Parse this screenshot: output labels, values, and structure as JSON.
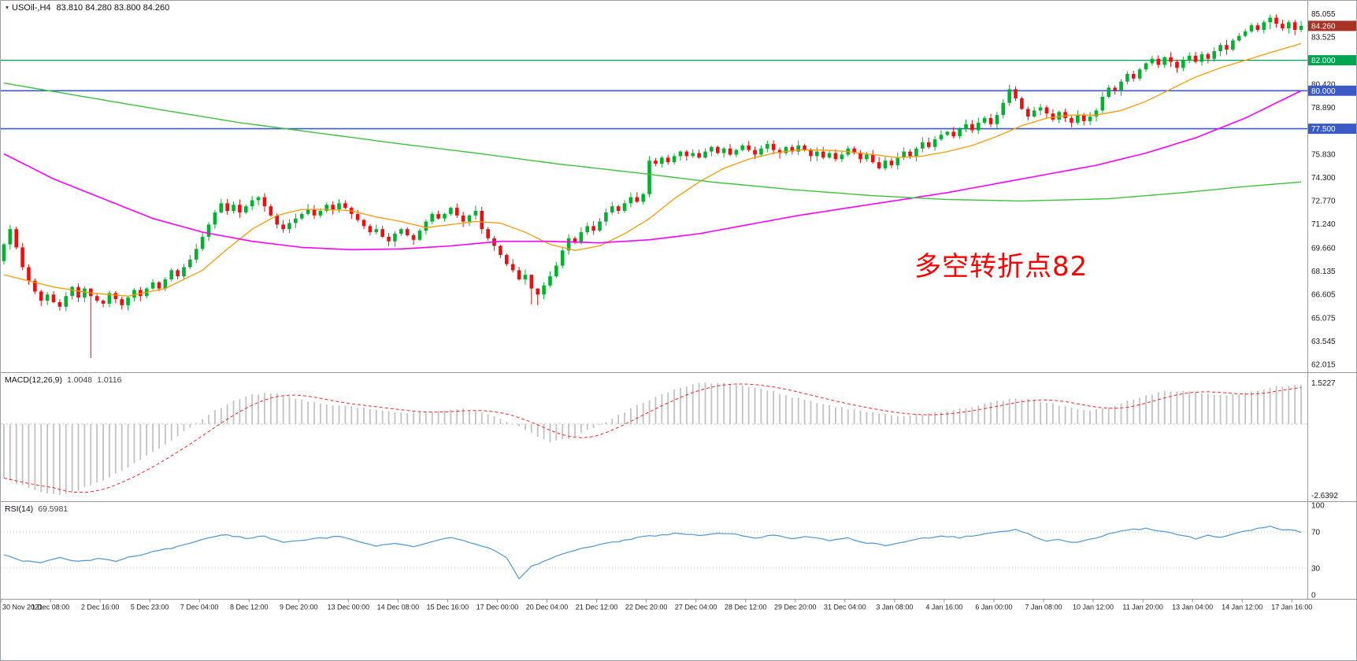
{
  "main_chart": {
    "title_symbol": "USOil-,H4",
    "title_quote": "83.810 84.280 83.800 84.260",
    "annotation": {
      "text": "多空转折点82",
      "color": "#ff0000"
    }
  },
  "indicators": {
    "macd": {
      "name": "MACD(12,26,9)",
      "macd_value": "1.0048",
      "signal_value": "1.0116",
      "scale_max": "1.5227",
      "scale_min": "-2.6392"
    },
    "rsi": {
      "name": "RSI(14)",
      "value": "69.5981",
      "levels": [
        100,
        70,
        30,
        0
      ]
    }
  },
  "y_axis": {
    "ticks": [
      "85.055",
      "83.525",
      "80.420",
      "78.890",
      "75.830",
      "74.300",
      "72.770",
      "71.240",
      "69.660",
      "68.135",
      "66.605",
      "65.075",
      "63.545",
      "62.015"
    ],
    "badges": [
      {
        "label": "84.260",
        "price": 84.26,
        "color": "#a93226"
      },
      {
        "label": "82.000",
        "price": 82.0,
        "color": "#00a550"
      },
      {
        "label": "80.000",
        "price": 80.0,
        "color": "#3a5bc7"
      },
      {
        "label": "77.500",
        "price": 77.5,
        "color": "#3a5bc7"
      }
    ]
  },
  "x_axis": {
    "labels": [
      "30 Nov 2021",
      "1 Dec 08:00",
      "2 Dec 16:00",
      "5 Dec 23:00",
      "7 Dec 04:00",
      "8 Dec 12:00",
      "9 Dec 20:00",
      "13 Dec 00:00",
      "14 Dec 08:00",
      "15 Dec 16:00",
      "17 Dec 00:00",
      "20 Dec 04:00",
      "21 Dec 12:00",
      "22 Dec 20:00",
      "27 Dec 04:00",
      "28 Dec 12:00",
      "29 Dec 20:00",
      "31 Dec 04:00",
      "3 Jan 08:00",
      "4 Jan 16:00",
      "6 Jan 00:00",
      "7 Jan 08:00",
      "10 Jan 12:00",
      "11 Jan 20:00",
      "13 Jan 04:00",
      "14 Jan 12:00",
      "17 Jan 16:00"
    ]
  },
  "chart_data": {
    "type": "candlestick",
    "symbol": "USOil",
    "timeframe": "H4",
    "price_range": [
      61.6,
      85.6
    ],
    "colors": {
      "up": "#00b22d",
      "down": "#ea1010"
    },
    "candles": {
      "first_open": 68.8,
      "closes": [
        69.9,
        70.9,
        69.7,
        68.4,
        67.5,
        66.8,
        66.2,
        66.6,
        66.1,
        65.8,
        66.5,
        67.1,
        66.4,
        67.0,
        66.5,
        66.2,
        66.0,
        66.7,
        66.3,
        65.9,
        66.4,
        66.9,
        66.5,
        67.0,
        67.4,
        67.0,
        67.6,
        68.2,
        67.8,
        68.4,
        68.9,
        69.6,
        70.4,
        71.2,
        72.0,
        72.6,
        72.1,
        72.5,
        72.0,
        72.4,
        72.8,
        73.0,
        72.4,
        71.8,
        71.2,
        70.9,
        71.3,
        71.6,
        71.9,
        72.2,
        71.8,
        72.1,
        72.5,
        72.2,
        72.6,
        72.3,
        71.9,
        71.5,
        71.1,
        70.7,
        70.9,
        70.4,
        70.1,
        70.6,
        70.9,
        70.5,
        70.2,
        70.8,
        71.4,
        71.9,
        71.6,
        71.9,
        72.3,
        71.8,
        71.4,
        71.8,
        72.1,
        70.9,
        70.3,
        69.8,
        69.2,
        68.6,
        68.2,
        67.6,
        67.9,
        67.0,
        66.6,
        67.2,
        67.8,
        68.5,
        69.5,
        70.3,
        70.0,
        70.7,
        71.1,
        70.8,
        71.4,
        72.0,
        72.4,
        72.1,
        72.6,
        73.0,
        72.7,
        73.2,
        75.4,
        75.2,
        75.6,
        75.3,
        75.7,
        76.0,
        75.7,
        75.9,
        75.6,
        76.0,
        76.3,
        75.9,
        76.2,
        75.8,
        76.1,
        76.4,
        76.1,
        75.8,
        76.2,
        76.5,
        76.1,
        75.9,
        76.3,
        76.0,
        76.4,
        76.1,
        75.7,
        76.0,
        75.6,
        75.9,
        75.5,
        75.8,
        76.2,
        75.9,
        75.5,
        75.8,
        75.3,
        74.9,
        75.4,
        75.1,
        75.6,
        76.0,
        75.7,
        76.2,
        76.6,
        76.3,
        76.8,
        77.1,
        77.3,
        77.0,
        77.5,
        77.8,
        77.4,
        77.9,
        78.2,
        77.8,
        78.4,
        79.2,
        80.1,
        79.5,
        78.8,
        78.3,
        78.7,
        78.9,
        78.5,
        78.1,
        78.6,
        78.2,
        77.9,
        78.4,
        78.0,
        78.3,
        78.7,
        79.6,
        80.2,
        80.0,
        80.6,
        81.1,
        80.8,
        81.4,
        81.8,
        82.1,
        81.7,
        82.2,
        81.9,
        81.5,
        82.0,
        82.3,
        81.9,
        82.4,
        82.1,
        82.6,
        83.0,
        82.7,
        83.3,
        83.6,
        83.9,
        84.3,
        84.0,
        84.5,
        84.8,
        84.4,
        84.1,
        84.5,
        84.0,
        84.26
      ],
      "wick_overrides": {
        "9": [
          66.3,
          65.55
        ],
        "14": [
          66.9,
          62.43
        ],
        "85": [
          67.4,
          65.95
        ],
        "86": [
          67.0,
          65.9
        ],
        "104": [
          75.7,
          73.0
        ],
        "162": [
          80.4,
          79.0
        ],
        "204": [
          85.0,
          84.05
        ]
      }
    },
    "horizontal_lines": [
      {
        "price": 82.0,
        "color": "#00a550",
        "width": 1.2
      },
      {
        "price": 80.0,
        "color": "#3a5bc7",
        "width": 1.6
      },
      {
        "price": 77.5,
        "color": "#3a5bc7",
        "width": 1.6
      }
    ],
    "moving_averages": [
      {
        "name": "MA fast",
        "color": "#ff9900",
        "width": 1.3,
        "points": [
          [
            0,
            67.9
          ],
          [
            8,
            67.1
          ],
          [
            14,
            66.7
          ],
          [
            20,
            66.5
          ],
          [
            26,
            67.0
          ],
          [
            32,
            68.2
          ],
          [
            36,
            69.6
          ],
          [
            40,
            70.9
          ],
          [
            44,
            71.8
          ],
          [
            48,
            72.2
          ],
          [
            52,
            72.2
          ],
          [
            56,
            72.1
          ],
          [
            60,
            71.7
          ],
          [
            64,
            71.4
          ],
          [
            68,
            71.0
          ],
          [
            72,
            71.2
          ],
          [
            76,
            71.4
          ],
          [
            80,
            71.3
          ],
          [
            84,
            70.7
          ],
          [
            88,
            69.9
          ],
          [
            92,
            69.5
          ],
          [
            96,
            69.8
          ],
          [
            100,
            70.6
          ],
          [
            104,
            71.6
          ],
          [
            108,
            72.9
          ],
          [
            112,
            74.0
          ],
          [
            116,
            74.9
          ],
          [
            120,
            75.5
          ],
          [
            124,
            75.9
          ],
          [
            128,
            76.1
          ],
          [
            132,
            76.1
          ],
          [
            136,
            76.0
          ],
          [
            140,
            75.8
          ],
          [
            144,
            75.6
          ],
          [
            148,
            75.7
          ],
          [
            152,
            76.0
          ],
          [
            156,
            76.4
          ],
          [
            160,
            77.0
          ],
          [
            164,
            77.7
          ],
          [
            168,
            78.2
          ],
          [
            172,
            78.4
          ],
          [
            176,
            78.4
          ],
          [
            180,
            78.7
          ],
          [
            184,
            79.3
          ],
          [
            188,
            80.1
          ],
          [
            192,
            80.9
          ],
          [
            196,
            81.5
          ],
          [
            200,
            82.0
          ],
          [
            204,
            82.5
          ],
          [
            209,
            83.1
          ]
        ]
      },
      {
        "name": "MA mid",
        "color": "#ff00ff",
        "width": 1.6,
        "points": [
          [
            0,
            75.85
          ],
          [
            8,
            74.2
          ],
          [
            16,
            72.9
          ],
          [
            24,
            71.6
          ],
          [
            32,
            70.7
          ],
          [
            40,
            70.1
          ],
          [
            48,
            69.7
          ],
          [
            56,
            69.55
          ],
          [
            64,
            69.6
          ],
          [
            72,
            69.8
          ],
          [
            80,
            70.1
          ],
          [
            88,
            70.1
          ],
          [
            96,
            70.0
          ],
          [
            104,
            70.2
          ],
          [
            112,
            70.6
          ],
          [
            120,
            71.2
          ],
          [
            128,
            71.8
          ],
          [
            136,
            72.3
          ],
          [
            144,
            72.8
          ],
          [
            152,
            73.3
          ],
          [
            160,
            73.9
          ],
          [
            168,
            74.5
          ],
          [
            176,
            75.1
          ],
          [
            184,
            75.9
          ],
          [
            192,
            76.9
          ],
          [
            200,
            78.2
          ],
          [
            205,
            79.2
          ],
          [
            209,
            80.0
          ]
        ]
      },
      {
        "name": "MA slow",
        "color": "#3dc33d",
        "width": 1.4,
        "points": [
          [
            0,
            80.5
          ],
          [
            13,
            79.6
          ],
          [
            26,
            78.7
          ],
          [
            38,
            77.9
          ],
          [
            51,
            77.2
          ],
          [
            64,
            76.5
          ],
          [
            76,
            75.9
          ],
          [
            89,
            75.2
          ],
          [
            102,
            74.6
          ],
          [
            114,
            74.0
          ],
          [
            127,
            73.5
          ],
          [
            140,
            73.1
          ],
          [
            152,
            72.85
          ],
          [
            164,
            72.75
          ],
          [
            178,
            72.9
          ],
          [
            190,
            73.3
          ],
          [
            200,
            73.7
          ],
          [
            209,
            74.0
          ]
        ]
      }
    ],
    "macd": {
      "range": [
        -2.8,
        1.8
      ],
      "histogram_color": "#c2c2c2",
      "signal_color": "#ff2020",
      "histogram_points": [
        [
          0,
          -2.0
        ],
        [
          3,
          -2.3
        ],
        [
          6,
          -2.55
        ],
        [
          9,
          -2.64
        ],
        [
          12,
          -2.45
        ],
        [
          16,
          -2.1
        ],
        [
          20,
          -1.6
        ],
        [
          24,
          -1.05
        ],
        [
          28,
          -0.45
        ],
        [
          31,
          0.05
        ],
        [
          34,
          0.5
        ],
        [
          37,
          0.85
        ],
        [
          40,
          1.1
        ],
        [
          43,
          1.15
        ],
        [
          46,
          1.0
        ],
        [
          50,
          0.8
        ],
        [
          54,
          0.68
        ],
        [
          58,
          0.6
        ],
        [
          62,
          0.45
        ],
        [
          66,
          0.4
        ],
        [
          70,
          0.5
        ],
        [
          74,
          0.55
        ],
        [
          78,
          0.35
        ],
        [
          82,
          0.0
        ],
        [
          85,
          -0.35
        ],
        [
          88,
          -0.65
        ],
        [
          91,
          -0.55
        ],
        [
          94,
          -0.25
        ],
        [
          97,
          0.1
        ],
        [
          100,
          0.45
        ],
        [
          103,
          0.8
        ],
        [
          106,
          1.1
        ],
        [
          109,
          1.35
        ],
        [
          112,
          1.5
        ],
        [
          115,
          1.52
        ],
        [
          118,
          1.45
        ],
        [
          121,
          1.35
        ],
        [
          124,
          1.2
        ],
        [
          127,
          1.0
        ],
        [
          130,
          0.85
        ],
        [
          133,
          0.7
        ],
        [
          136,
          0.55
        ],
        [
          139,
          0.45
        ],
        [
          142,
          0.35
        ],
        [
          145,
          0.3
        ],
        [
          148,
          0.35
        ],
        [
          151,
          0.45
        ],
        [
          154,
          0.55
        ],
        [
          157,
          0.7
        ],
        [
          160,
          0.85
        ],
        [
          163,
          0.95
        ],
        [
          166,
          0.9
        ],
        [
          169,
          0.75
        ],
        [
          172,
          0.6
        ],
        [
          175,
          0.5
        ],
        [
          178,
          0.6
        ],
        [
          181,
          0.85
        ],
        [
          184,
          1.05
        ],
        [
          187,
          1.2
        ],
        [
          190,
          1.25
        ],
        [
          193,
          1.15
        ],
        [
          196,
          1.05
        ],
        [
          199,
          1.1
        ],
        [
          202,
          1.25
        ],
        [
          205,
          1.4
        ],
        [
          209,
          1.42
        ]
      ]
    },
    "rsi": {
      "range": [
        0,
        100
      ],
      "color": "#4a96d4",
      "points": [
        [
          0,
          44
        ],
        [
          3,
          38
        ],
        [
          6,
          36
        ],
        [
          9,
          41
        ],
        [
          12,
          37
        ],
        [
          15,
          40
        ],
        [
          18,
          38
        ],
        [
          21,
          43
        ],
        [
          24,
          48
        ],
        [
          27,
          52
        ],
        [
          30,
          58
        ],
        [
          33,
          64
        ],
        [
          36,
          67
        ],
        [
          39,
          63
        ],
        [
          42,
          66
        ],
        [
          45,
          58
        ],
        [
          48,
          61
        ],
        [
          51,
          63
        ],
        [
          54,
          65
        ],
        [
          57,
          60
        ],
        [
          60,
          55
        ],
        [
          63,
          57
        ],
        [
          66,
          54
        ],
        [
          69,
          60
        ],
        [
          72,
          64
        ],
        [
          75,
          59
        ],
        [
          78,
          52
        ],
        [
          80,
          46
        ],
        [
          81,
          42
        ],
        [
          83,
          18
        ],
        [
          85,
          32
        ],
        [
          87,
          38
        ],
        [
          89,
          44
        ],
        [
          91,
          48
        ],
        [
          94,
          53
        ],
        [
          97,
          57
        ],
        [
          100,
          61
        ],
        [
          103,
          65
        ],
        [
          106,
          67
        ],
        [
          109,
          69
        ],
        [
          112,
          66
        ],
        [
          115,
          69
        ],
        [
          118,
          67
        ],
        [
          121,
          64
        ],
        [
          124,
          66
        ],
        [
          127,
          63
        ],
        [
          130,
          65
        ],
        [
          133,
          60
        ],
        [
          136,
          63
        ],
        [
          139,
          58
        ],
        [
          142,
          55
        ],
        [
          145,
          59
        ],
        [
          148,
          63
        ],
        [
          151,
          66
        ],
        [
          154,
          64
        ],
        [
          157,
          67
        ],
        [
          160,
          70
        ],
        [
          163,
          73
        ],
        [
          166,
          65
        ],
        [
          168,
          60
        ],
        [
          170,
          62
        ],
        [
          172,
          58
        ],
        [
          174,
          61
        ],
        [
          176,
          63
        ],
        [
          178,
          68
        ],
        [
          180,
          71
        ],
        [
          182,
          73
        ],
        [
          184,
          74
        ],
        [
          186,
          71
        ],
        [
          188,
          69
        ],
        [
          190,
          66
        ],
        [
          192,
          63
        ],
        [
          194,
          66
        ],
        [
          196,
          64
        ],
        [
          198,
          68
        ],
        [
          200,
          71
        ],
        [
          202,
          74
        ],
        [
          204,
          76
        ],
        [
          206,
          73
        ],
        [
          208,
          72
        ],
        [
          209,
          69.6
        ]
      ]
    }
  }
}
